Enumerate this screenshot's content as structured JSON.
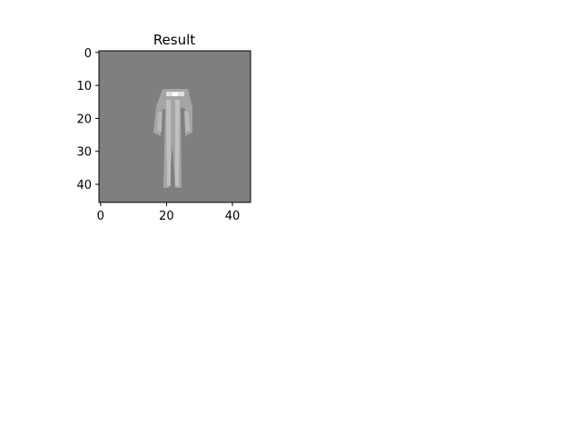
{
  "figure": {
    "title": "Result",
    "background": "#ffffff"
  },
  "image_plot": {
    "grid_size": 46,
    "xlim": [
      -0.5,
      45.5
    ],
    "ylim": [
      45.5,
      -0.5
    ],
    "x_ticks": [
      0,
      20,
      40
    ],
    "y_ticks": [
      0,
      10,
      20,
      30,
      40
    ],
    "x_tick_labels": [
      "0",
      "20",
      "40"
    ],
    "y_tick_labels": [
      "0",
      "10",
      "20",
      "30",
      "40"
    ],
    "colormap": "gray",
    "background_gray": "#7f7f7f",
    "figure_shown": "pale grayscale silhouette of a clothing item (top with sleeves and trouser legs) on a mid-gray background"
  }
}
